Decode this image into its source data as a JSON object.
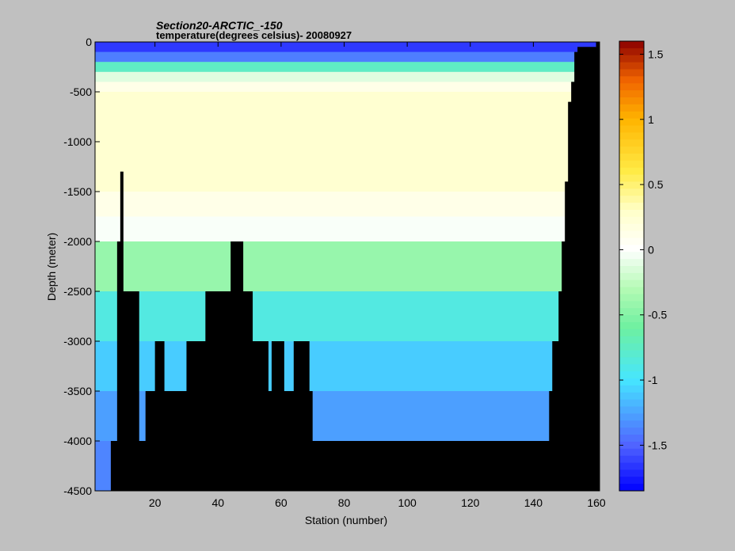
{
  "chart_data": {
    "type": "heatmap",
    "title": "Section20-ARCTIC_-150",
    "subtitle": "temperature(degrees  celsius)- 20080927",
    "xlabel": "Station (number)",
    "ylabel": "Depth (meter)",
    "xlim": [
      1,
      161
    ],
    "ylim": [
      -4500,
      0
    ],
    "x_ticks": [
      20,
      40,
      60,
      80,
      100,
      120,
      140,
      160
    ],
    "y_ticks": [
      0,
      -500,
      -1000,
      -1500,
      -2000,
      -2500,
      -3000,
      -3500,
      -4000,
      -4500
    ],
    "colorbar": {
      "min": -1.85,
      "max": 1.6,
      "ticks": [
        1.5,
        1,
        0.5,
        0,
        -0.5,
        -1,
        -1.5
      ],
      "colormap": "jet-white-centered"
    },
    "depth_levels": [
      0,
      -100,
      -200,
      -300,
      -400,
      -500,
      -1000,
      -1500,
      -1750,
      -2000,
      -2500,
      -3000,
      -3500,
      -4000,
      -4500
    ],
    "bottom_profile": [
      [
        1,
        -4500
      ],
      [
        5,
        -4500
      ],
      [
        6,
        -4000
      ],
      [
        7,
        -4000
      ],
      [
        8,
        -2000
      ],
      [
        9,
        -1300
      ],
      [
        10,
        -2500
      ],
      [
        15,
        -4000
      ],
      [
        17,
        -3500
      ],
      [
        20,
        -3000
      ],
      [
        23,
        -3500
      ],
      [
        30,
        -3000
      ],
      [
        35,
        -3000
      ],
      [
        36,
        -2500
      ],
      [
        43,
        -2500
      ],
      [
        44,
        -2000
      ],
      [
        47,
        -2000
      ],
      [
        48,
        -2500
      ],
      [
        50,
        -2500
      ],
      [
        51,
        -3000
      ],
      [
        55,
        -3000
      ],
      [
        56,
        -3500
      ],
      [
        57,
        -3000
      ],
      [
        60,
        -3000
      ],
      [
        61,
        -3500
      ],
      [
        63,
        -3500
      ],
      [
        64,
        -3000
      ],
      [
        69,
        -3500
      ],
      [
        70,
        -4000
      ],
      [
        144,
        -4000
      ],
      [
        145,
        -3500
      ],
      [
        146,
        -3000
      ],
      [
        148,
        -2500
      ],
      [
        149,
        -2000
      ],
      [
        150,
        -1400
      ],
      [
        151,
        -600
      ],
      [
        152,
        -400
      ],
      [
        153,
        -100
      ],
      [
        154,
        -50
      ],
      [
        160,
        0
      ],
      [
        161,
        0
      ]
    ],
    "profile": [
      {
        "depth": 0,
        "temperature": -1.7
      },
      {
        "depth": -100,
        "temperature": -1.6
      },
      {
        "depth": -200,
        "temperature": -1.2
      },
      {
        "depth": -300,
        "temperature": -0.3
      },
      {
        "depth": -400,
        "temperature": 0.05
      },
      {
        "depth": -500,
        "temperature": 0.2
      },
      {
        "depth": -1000,
        "temperature": 0.3
      },
      {
        "depth": -1500,
        "temperature": 0.2
      },
      {
        "depth": -1750,
        "temperature": 0.05
      },
      {
        "depth": -2000,
        "temperature": -0.1
      },
      {
        "depth": -2500,
        "temperature": -0.75
      },
      {
        "depth": -3000,
        "temperature": -1.0
      },
      {
        "depth": -3500,
        "temperature": -1.2
      },
      {
        "depth": -4000,
        "temperature": -1.35
      },
      {
        "depth": -4500,
        "temperature": -1.4
      }
    ]
  }
}
